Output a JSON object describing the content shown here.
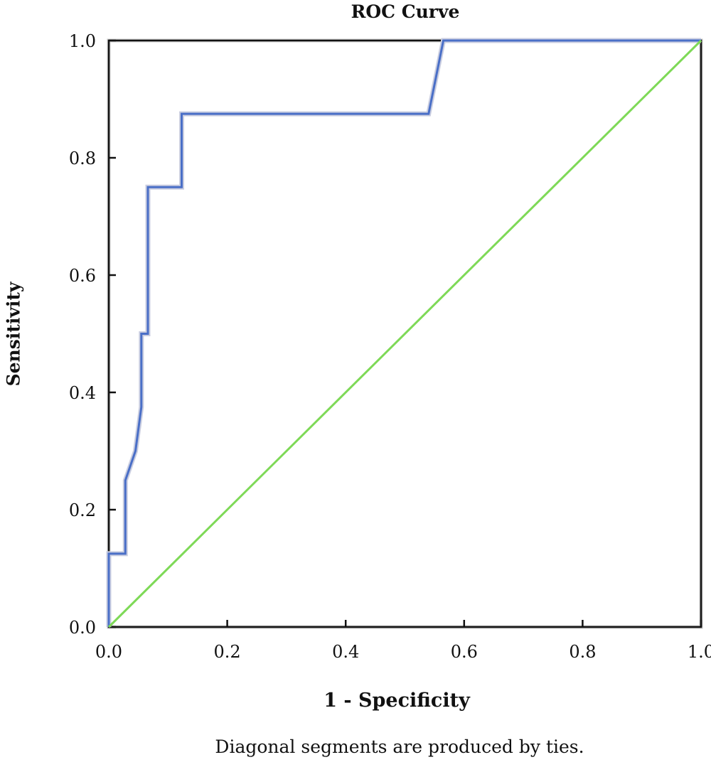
{
  "chart_data": {
    "type": "line",
    "title": "ROC Curve",
    "xlabel": "1 - Specificity",
    "ylabel": "Sensitivity",
    "footnote": "Diagonal segments are produced by ties.",
    "xlim": [
      0,
      1
    ],
    "ylim": [
      0,
      1
    ],
    "xticks": [
      "0.0",
      "0.2",
      "0.4",
      "0.6",
      "0.8",
      "1.0"
    ],
    "yticks": [
      "0.0",
      "0.2",
      "0.4",
      "0.6",
      "0.8",
      "1.0"
    ],
    "grid": false,
    "series": [
      {
        "color": "#4a6fc7",
        "x": [
          0.0,
          0.0,
          0.028,
          0.028,
          0.045,
          0.055,
          0.055,
          0.066,
          0.066,
          0.123,
          0.123,
          0.54,
          0.565,
          1.0
        ],
        "y": [
          0.0,
          0.125,
          0.125,
          0.25,
          0.3,
          0.375,
          0.5,
          0.5,
          0.75,
          0.75,
          0.875,
          0.875,
          1.0,
          1.0
        ]
      },
      {
        "color": "#7ed957",
        "x": [
          0.0,
          1.0
        ],
        "y": [
          0.0,
          1.0
        ]
      }
    ]
  }
}
